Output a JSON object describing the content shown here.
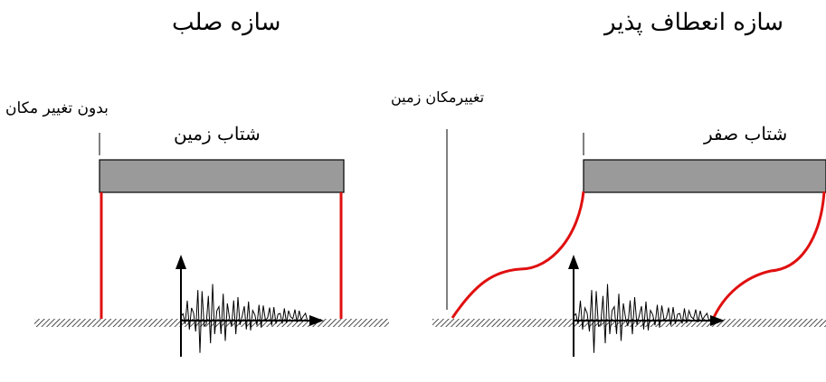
{
  "titles": {
    "rigid": "سازه صلب",
    "flexible": "سازه انعطاف پذیر"
  },
  "labels": {
    "no_displacement": "بدون تغییر مکان",
    "ground_acceleration": "شتاب زمین",
    "ground_displacement": "تغییرمکان زمین",
    "zero_acceleration": "شتاب صفر"
  },
  "colors": {
    "column": "#e01010",
    "beam_fill": "#9a9a9a",
    "ground_hatch": "#222222"
  }
}
